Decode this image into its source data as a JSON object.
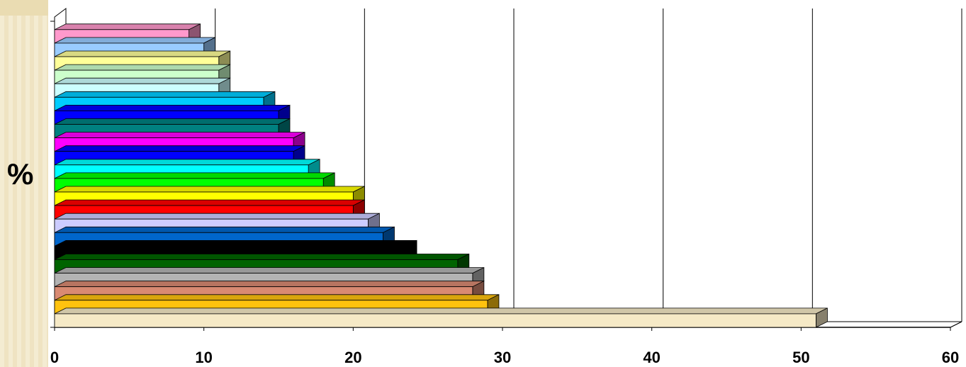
{
  "chart_data": {
    "type": "bar",
    "orientation": "horizontal",
    "style": "3d",
    "ylabel": "%",
    "xlabel": "",
    "xlim": [
      0,
      60
    ],
    "xticks": [
      0,
      10,
      20,
      30,
      40,
      50,
      60
    ],
    "grid": true,
    "legend": "none",
    "bars": [
      {
        "value": 51,
        "color": "#f5e9c6"
      },
      {
        "value": 29,
        "color": "#ffc20e"
      },
      {
        "value": 28,
        "color": "#d98a72"
      },
      {
        "value": 28,
        "color": "#b3b3b3"
      },
      {
        "value": 27,
        "color": "#006400"
      },
      {
        "value": 23.5,
        "color": "#000000"
      },
      {
        "value": 22,
        "color": "#0066cc"
      },
      {
        "value": 21,
        "color": "#ccccff"
      },
      {
        "value": 20,
        "color": "#ff0000"
      },
      {
        "value": 20,
        "color": "#ffff00"
      },
      {
        "value": 18,
        "color": "#00ff00"
      },
      {
        "value": 17,
        "color": "#00ffff"
      },
      {
        "value": 16,
        "color": "#0000ff"
      },
      {
        "value": 16,
        "color": "#ff00ff"
      },
      {
        "value": 15,
        "color": "#008080"
      },
      {
        "value": 15,
        "color": "#0000ff"
      },
      {
        "value": 14,
        "color": "#00ccff"
      },
      {
        "value": 11,
        "color": "#ccffff"
      },
      {
        "value": 11,
        "color": "#ccffcc"
      },
      {
        "value": 11,
        "color": "#ffff99"
      },
      {
        "value": 10,
        "color": "#99ccff"
      },
      {
        "value": 9,
        "color": "#ff99cc"
      }
    ]
  }
}
